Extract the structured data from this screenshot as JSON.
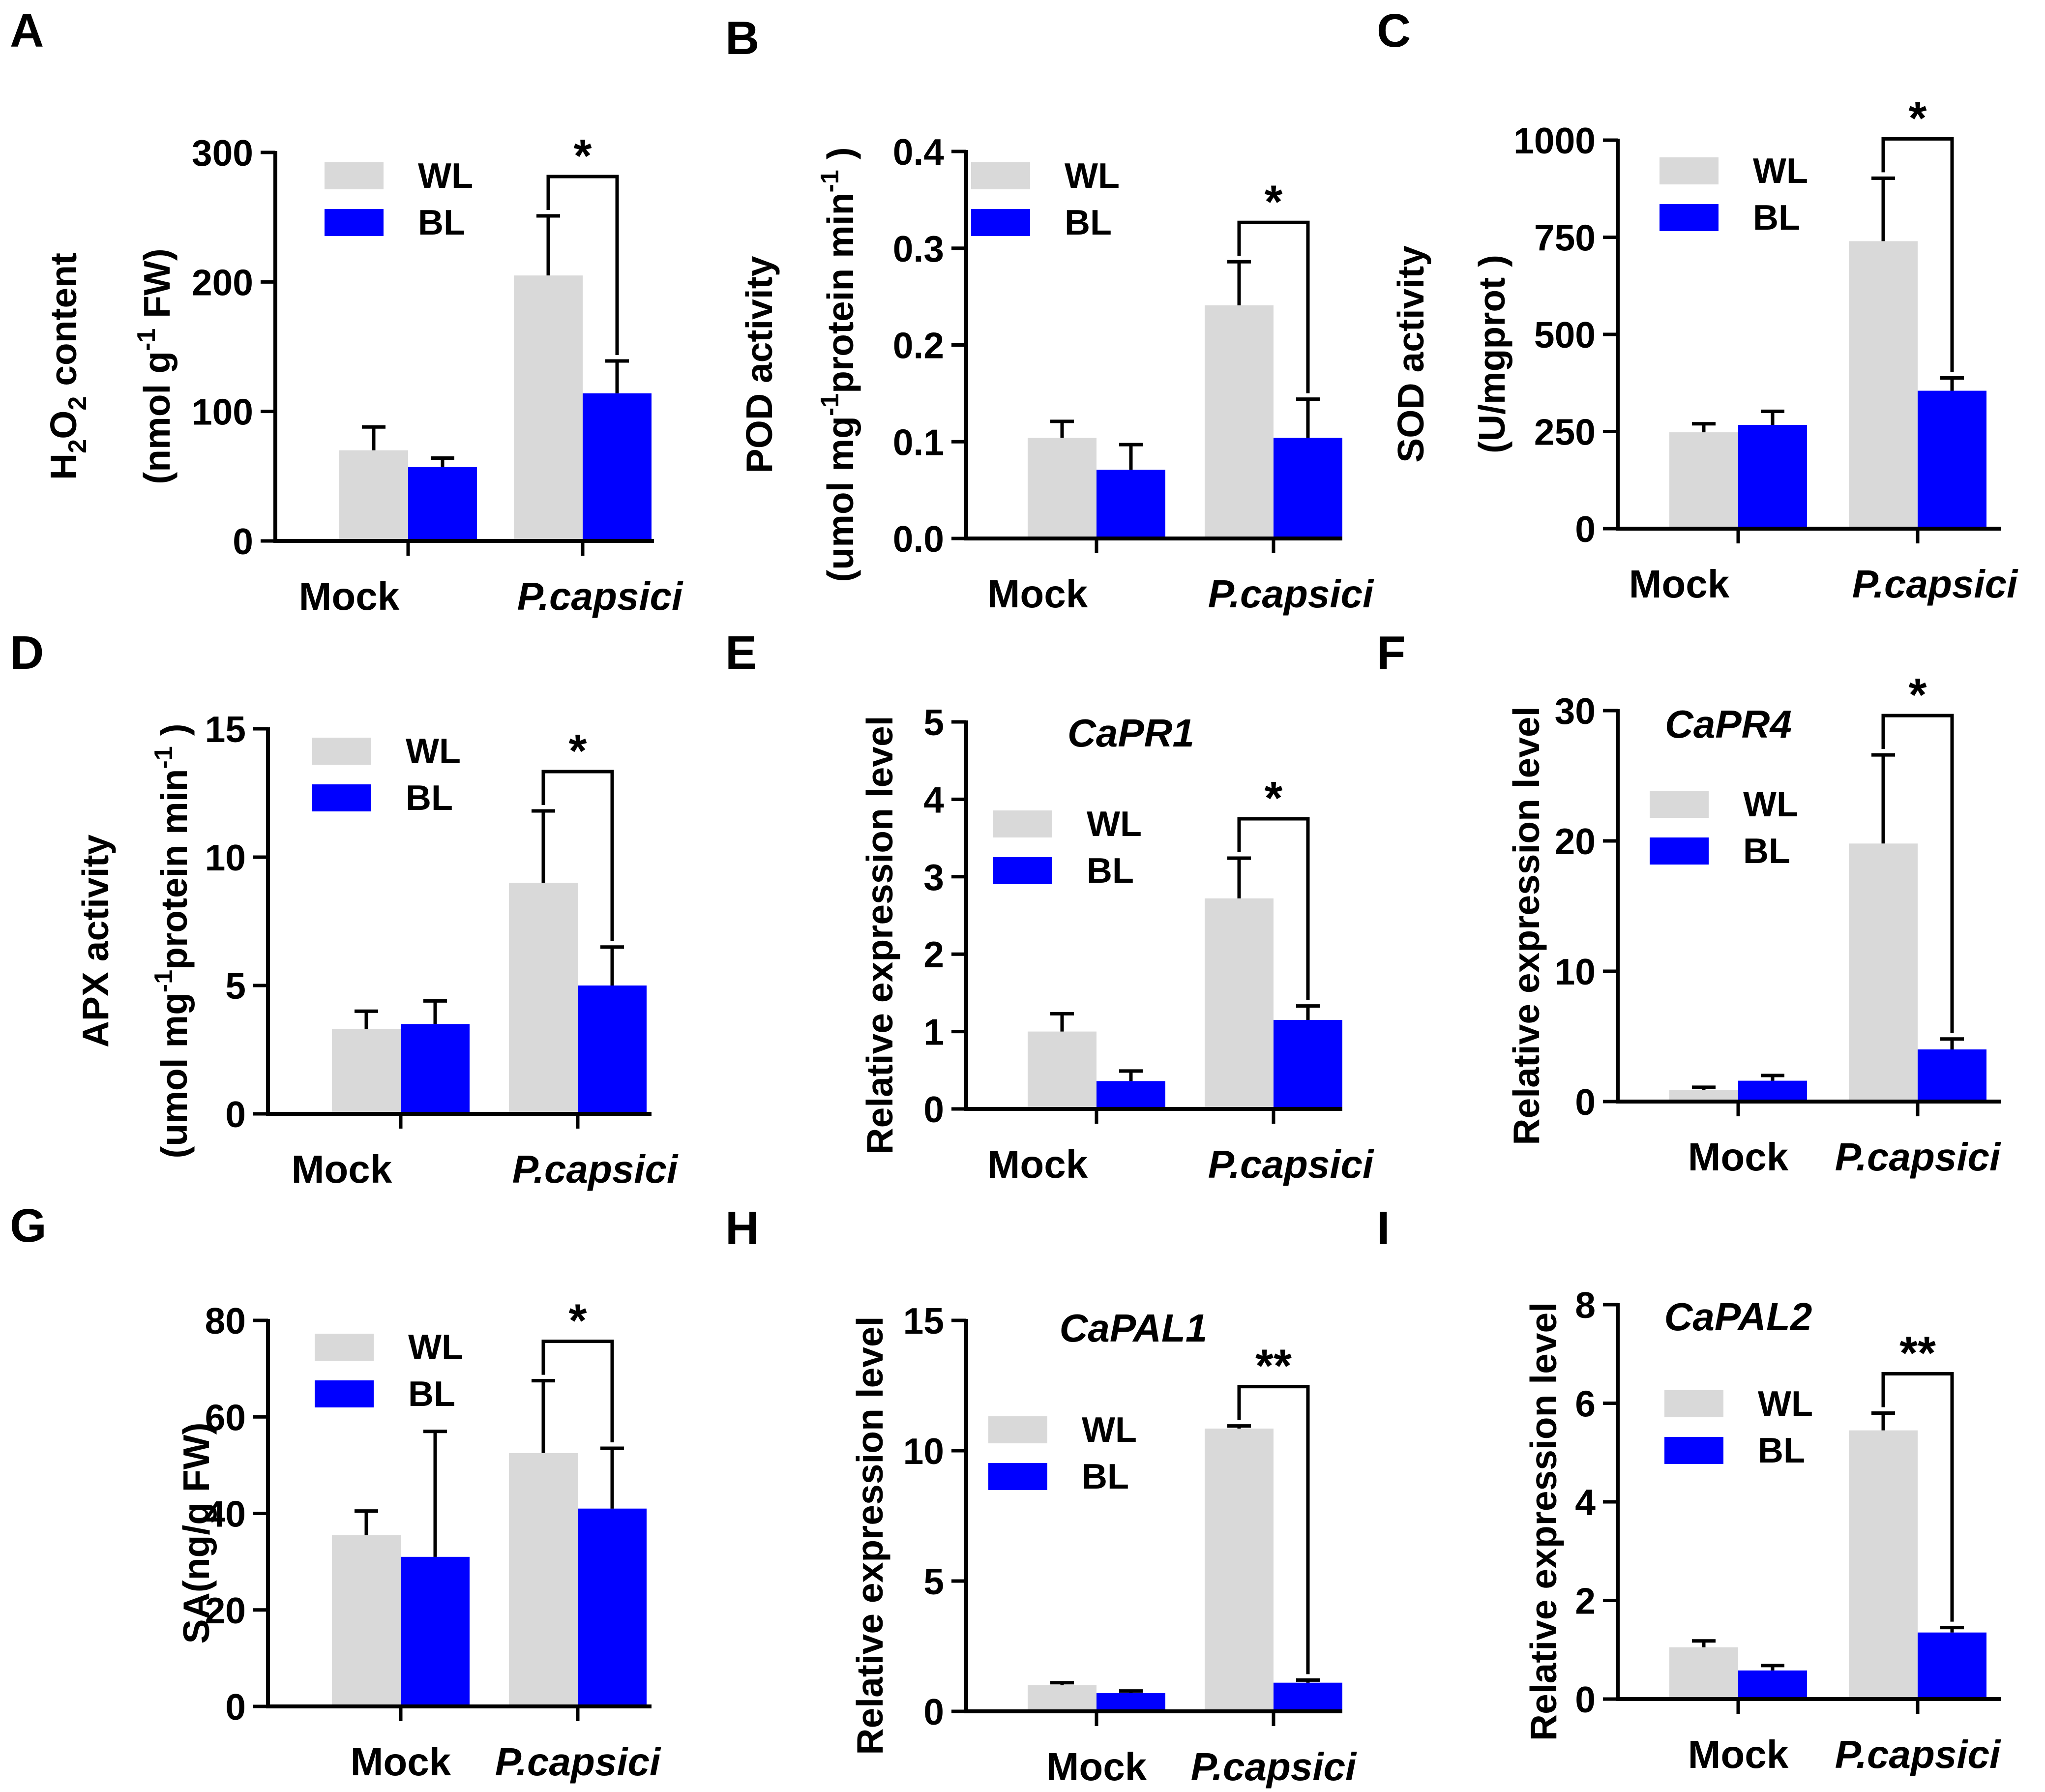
{
  "figure": {
    "series": [
      {
        "name": "WL",
        "color": "#d9d9d9"
      },
      {
        "name": "BL",
        "color": "#0000ff"
      }
    ],
    "colors": {
      "axis": "#000000",
      "wl": "#d9d9d9",
      "bl": "#0000ff"
    }
  },
  "chart_data": [
    {
      "panel": "A",
      "type": "bar",
      "title": "",
      "ylabel": [
        "H2O2 content",
        "(nmol g-1 FW)"
      ],
      "categories": [
        "Mock",
        "P.capsici"
      ],
      "series": [
        {
          "name": "WL",
          "values": [
            70,
            205
          ],
          "errors": [
            18,
            46
          ]
        },
        {
          "name": "BL",
          "values": [
            57,
            114
          ],
          "errors": [
            7,
            25
          ]
        }
      ],
      "ylim": [
        0,
        300
      ],
      "yticks": [
        0,
        100,
        200,
        300
      ],
      "ytick_labels": [
        "0",
        "100",
        "200",
        "300"
      ],
      "significance": "*",
      "legend": "top-left"
    },
    {
      "panel": "B",
      "type": "bar",
      "title": "",
      "ylabel": [
        "POD activity",
        "(umol mg-1protein min-1 )"
      ],
      "categories": [
        "Mock",
        "P.capsici"
      ],
      "series": [
        {
          "name": "WL",
          "values": [
            0.104,
            0.241
          ],
          "errors": [
            0.017,
            0.045
          ]
        },
        {
          "name": "BL",
          "values": [
            0.071,
            0.104
          ],
          "errors": [
            0.026,
            0.04
          ]
        }
      ],
      "ylim": [
        0,
        0.4
      ],
      "yticks": [
        0,
        0.1,
        0.2,
        0.3,
        0.4
      ],
      "ytick_labels": [
        "0.0",
        "0.1",
        "0.2",
        "0.3",
        "0.4"
      ],
      "significance": "*",
      "legend": "top-left"
    },
    {
      "panel": "C",
      "type": "bar",
      "title": "",
      "ylabel": [
        "SOD activity",
        "(U/mgprot )"
      ],
      "categories": [
        "Mock",
        "P.capsici"
      ],
      "series": [
        {
          "name": "WL",
          "values": [
            248,
            740
          ],
          "errors": [
            22,
            162
          ]
        },
        {
          "name": "BL",
          "values": [
            267,
            355
          ],
          "errors": [
            35,
            33
          ]
        }
      ],
      "ylim": [
        0,
        1000
      ],
      "yticks": [
        0,
        250,
        500,
        750,
        1000
      ],
      "ytick_labels": [
        "0",
        "250",
        "500",
        "750",
        "1000"
      ],
      "significance": "*",
      "legend": "top-left"
    },
    {
      "panel": "D",
      "type": "bar",
      "title": "",
      "ylabel": [
        "APX activity",
        "(umol mg-1protein min-1 )"
      ],
      "categories": [
        "Mock",
        "P.capsici"
      ],
      "series": [
        {
          "name": "WL",
          "values": [
            3.3,
            9.0
          ],
          "errors": [
            0.7,
            2.8
          ]
        },
        {
          "name": "BL",
          "values": [
            3.5,
            5.0
          ],
          "errors": [
            0.9,
            1.5
          ]
        }
      ],
      "ylim": [
        0,
        15
      ],
      "yticks": [
        0,
        5,
        10,
        15
      ],
      "ytick_labels": [
        "0",
        "5",
        "10",
        "15"
      ],
      "significance": "*",
      "legend": "top-left"
    },
    {
      "panel": "E",
      "type": "bar",
      "title": "CaPR1",
      "ylabel": [
        "Relative expression level"
      ],
      "categories": [
        "Mock",
        "P.capsici"
      ],
      "series": [
        {
          "name": "WL",
          "values": [
            1.0,
            2.72
          ],
          "errors": [
            0.23,
            0.52
          ]
        },
        {
          "name": "BL",
          "values": [
            0.36,
            1.15
          ],
          "errors": [
            0.13,
            0.18
          ]
        }
      ],
      "ylim": [
        0,
        5
      ],
      "yticks": [
        0,
        1,
        2,
        3,
        4,
        5
      ],
      "ytick_labels": [
        "0",
        "1",
        "2",
        "3",
        "4",
        "5"
      ],
      "significance": "*",
      "legend": "top-left"
    },
    {
      "panel": "F",
      "type": "bar",
      "title": "CaPR4",
      "ylabel": [
        "Relative expression level"
      ],
      "categories": [
        "Mock",
        "P.capsici"
      ],
      "series": [
        {
          "name": "WL",
          "values": [
            0.9,
            19.8
          ],
          "errors": [
            0.2,
            6.8
          ]
        },
        {
          "name": "BL",
          "values": [
            1.6,
            4.0
          ],
          "errors": [
            0.4,
            0.8
          ]
        }
      ],
      "ylim": [
        0,
        30
      ],
      "yticks": [
        0,
        10,
        20,
        30
      ],
      "ytick_labels": [
        "0",
        "10",
        "20",
        "30"
      ],
      "significance": "*",
      "legend": "top-left"
    },
    {
      "panel": "G",
      "type": "bar",
      "title": "",
      "ylabel": [
        "SA(ng/g FW)"
      ],
      "categories": [
        "Mock",
        "P.capsici"
      ],
      "series": [
        {
          "name": "WL",
          "values": [
            35.5,
            52.5
          ],
          "errors": [
            5.0,
            15.0
          ]
        },
        {
          "name": "BL",
          "values": [
            31.0,
            41.0
          ],
          "errors": [
            26.0,
            12.5
          ]
        }
      ],
      "ylim": [
        0,
        80
      ],
      "yticks": [
        0,
        20,
        40,
        60,
        80
      ],
      "ytick_labels": [
        "0",
        "20",
        "40",
        "60",
        "80"
      ],
      "significance": "*",
      "legend": "top-left"
    },
    {
      "panel": "H",
      "type": "bar",
      "title": "CaPAL1",
      "ylabel": [
        "Relative expression level"
      ],
      "categories": [
        "Mock",
        "P.capsici"
      ],
      "series": [
        {
          "name": "WL",
          "values": [
            1.0,
            10.85
          ],
          "errors": [
            0.1,
            0.1
          ]
        },
        {
          "name": "BL",
          "values": [
            0.7,
            1.1
          ],
          "errors": [
            0.08,
            0.1
          ]
        }
      ],
      "ylim": [
        0,
        15
      ],
      "yticks": [
        0,
        5,
        10,
        15
      ],
      "ytick_labels": [
        "0",
        "5",
        "10",
        "15"
      ],
      "significance": "**",
      "legend": "top-left"
    },
    {
      "panel": "I",
      "type": "bar",
      "title": "CaPAL2",
      "ylabel": [
        "Relative expression level"
      ],
      "categories": [
        "Mock",
        "P.capsici"
      ],
      "series": [
        {
          "name": "WL",
          "values": [
            1.05,
            5.45
          ],
          "errors": [
            0.13,
            0.35
          ]
        },
        {
          "name": "BL",
          "values": [
            0.58,
            1.35
          ],
          "errors": [
            0.1,
            0.1
          ]
        }
      ],
      "ylim": [
        0,
        8
      ],
      "yticks": [
        0,
        2,
        4,
        6,
        8
      ],
      "ytick_labels": [
        "0",
        "2",
        "4",
        "6",
        "8"
      ],
      "significance": "**",
      "legend": "top-left"
    }
  ]
}
